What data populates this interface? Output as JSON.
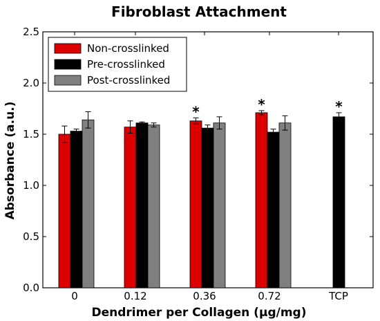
{
  "chart_data": {
    "type": "bar",
    "title": "Fibroblast Attachment",
    "xlabel": "Dendrimer per Collagen (µg/mg)",
    "ylabel": "Absorbance (a.u.)",
    "categories": [
      "0",
      "0.12",
      "0.36",
      "0.72",
      "TCP"
    ],
    "ylim": [
      0,
      2.5
    ],
    "yticks": [
      "0.0",
      "0.5",
      "1.0",
      "1.5",
      "2.0",
      "2.5"
    ],
    "series": [
      {
        "name": "Non-crosslinked",
        "color": "#dd0000",
        "values": [
          1.5,
          1.57,
          1.63,
          1.71,
          null
        ],
        "errors": [
          0.08,
          0.06,
          0.03,
          0.02,
          null
        ]
      },
      {
        "name": "Pre-crosslinked",
        "color": "#000000",
        "values": [
          1.53,
          1.61,
          1.56,
          1.52,
          1.67
        ],
        "errors": [
          0.02,
          0.01,
          0.03,
          0.03,
          0.04
        ]
      },
      {
        "name": "Post-crosslinked",
        "color": "#808080",
        "values": [
          1.64,
          1.59,
          1.61,
          1.61,
          null
        ],
        "errors": [
          0.08,
          0.02,
          0.06,
          0.07,
          null
        ]
      }
    ],
    "annotations": [
      {
        "text": "*",
        "category": "0.36",
        "series": "Non-crosslinked"
      },
      {
        "text": "*",
        "category": "0.72",
        "series": "Non-crosslinked"
      },
      {
        "text": "*",
        "category": "TCP",
        "series": "Pre-crosslinked"
      }
    ],
    "legend_position": "top-left",
    "grid": false
  }
}
